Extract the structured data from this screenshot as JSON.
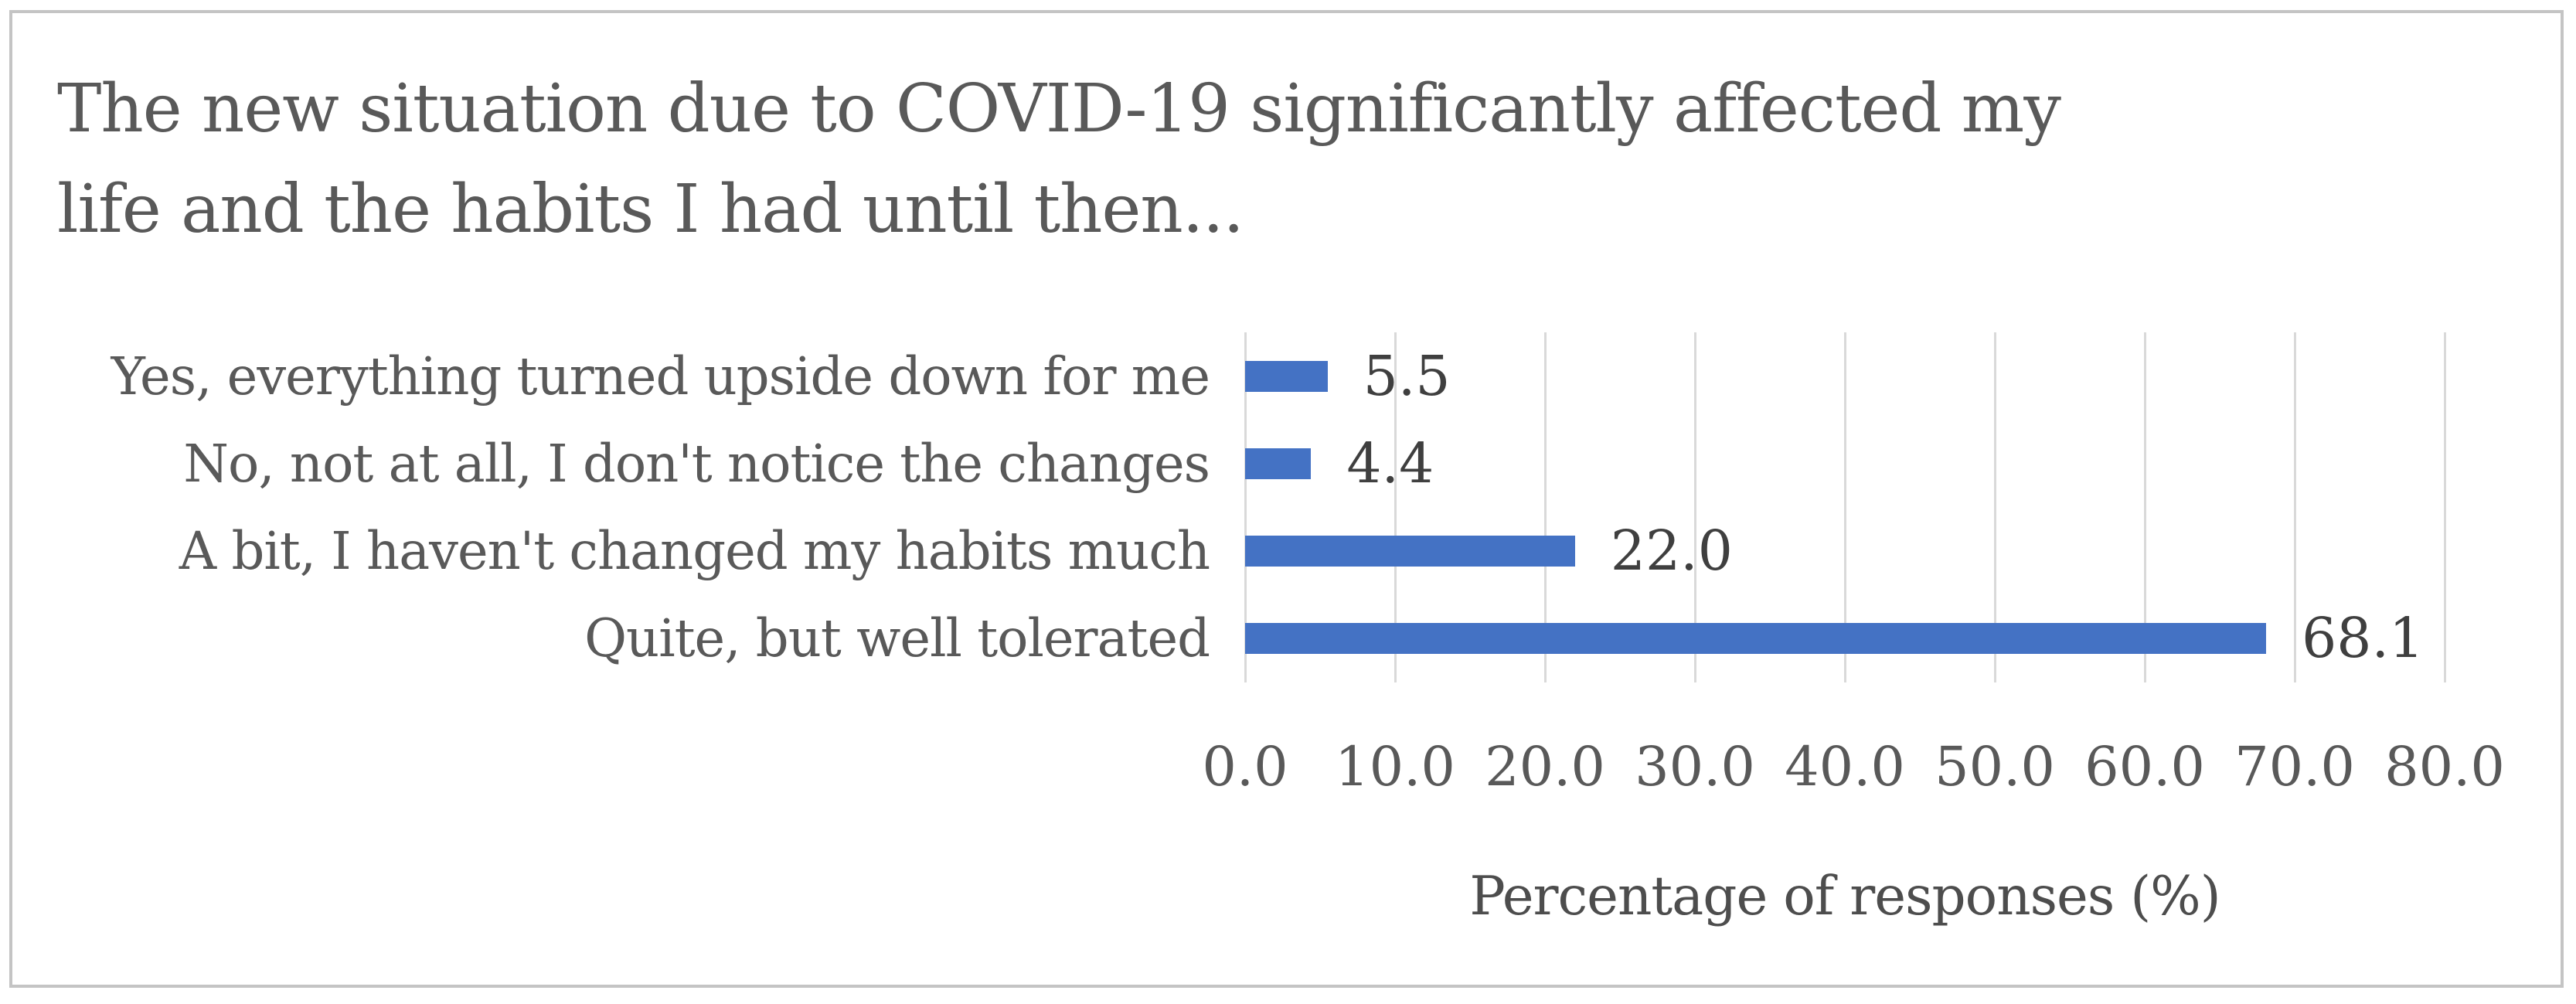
{
  "figure": {
    "frame_border_color": "#c4c4c4",
    "background_color": "#ffffff"
  },
  "chart_data": {
    "type": "bar",
    "orientation": "horizontal",
    "title": "The new situation due to COVID-19 significantly affected my life and the habits I had until then...",
    "title_lines": [
      "The new situation due to COVID-19 significantly affected my",
      "life and the habits I had until then..."
    ],
    "categories": [
      "Yes, everything turned upside down for me",
      "No, not at all, I don't notice the changes",
      "A bit, I haven't changed my habits much",
      "Quite, but well tolerated"
    ],
    "values": [
      5.5,
      4.4,
      22.0,
      68.1
    ],
    "value_labels": [
      "5.5",
      "4.4",
      "22.0",
      "68.1"
    ],
    "xlabel": "Percentage of responses (%)",
    "ylabel": "",
    "xlim": [
      0,
      80
    ],
    "xticks": [
      0,
      10,
      20,
      30,
      40,
      50,
      60,
      70,
      80
    ],
    "xtick_labels": [
      "0.0",
      "10.0",
      "20.0",
      "30.0",
      "40.0",
      "50.0",
      "60.0",
      "70.0",
      "80.0"
    ],
    "grid": "vertical-only",
    "legend": "none",
    "bar_color": "#4472C4",
    "gridline_color": "#d9d9d9",
    "title_color": "#595959",
    "category_color": "#595959",
    "tick_color": "#595959",
    "value_label_color": "#3f3f3f",
    "axis_title_color": "#4d4d4d"
  }
}
